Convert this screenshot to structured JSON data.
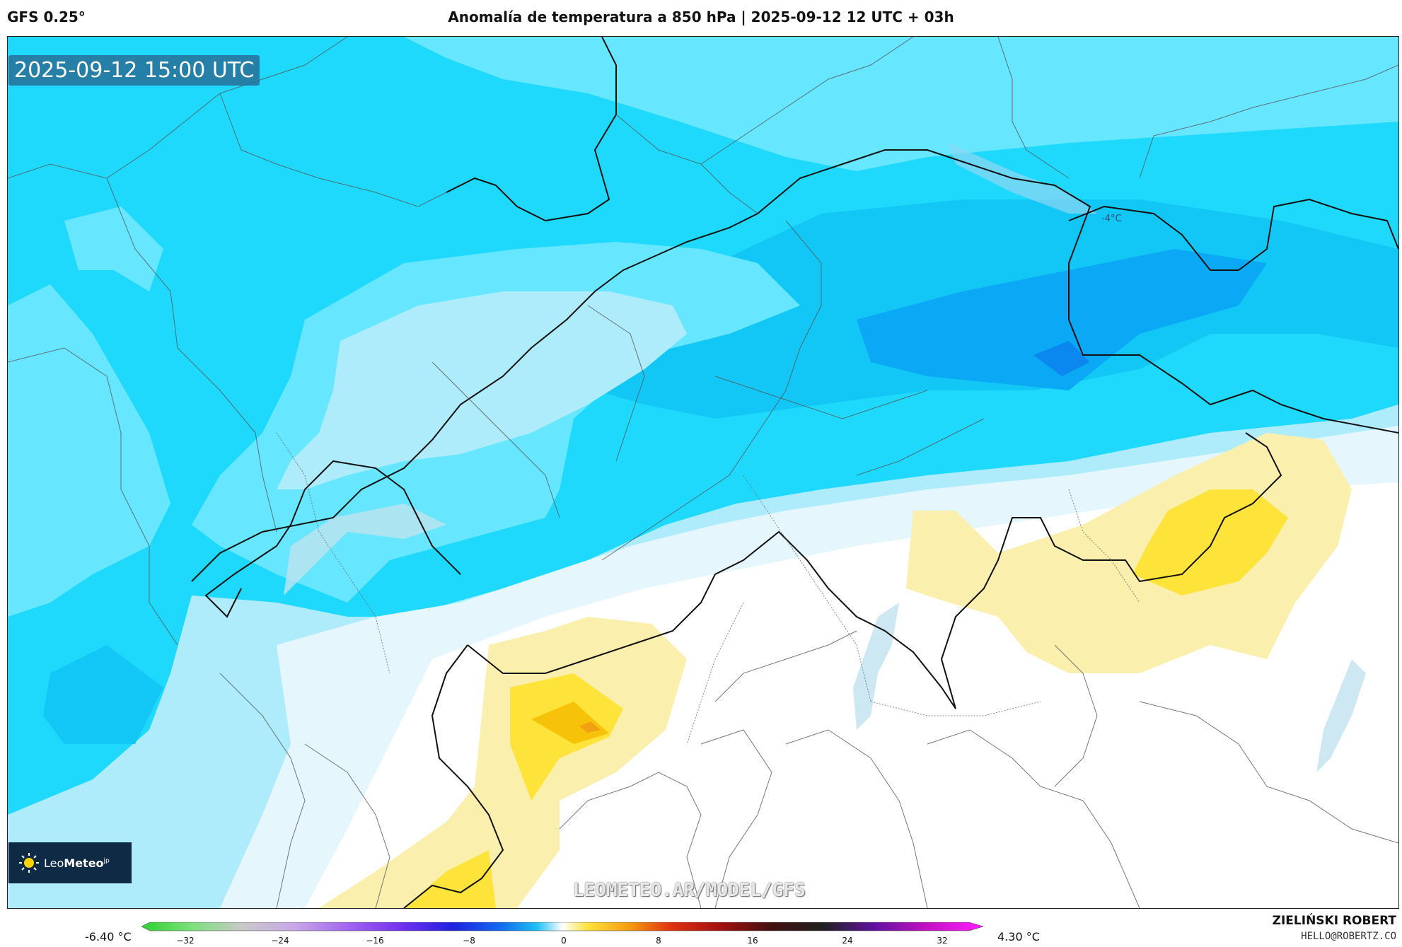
{
  "header": {
    "model": "GFS 0.25°",
    "title": "Anomalía de temperatura a 850 hPa | 2025-09-12 12 UTC + 03h"
  },
  "map": {
    "valid_time": "2025-09-12 15:00 UTC",
    "contour_label": "-4°C",
    "watermark": "LEOMETEO.AR/MODEL/GFS"
  },
  "logo": {
    "prefix": "Leo",
    "name": "Meteo",
    "suffix": "jp"
  },
  "colorbar": {
    "min_value": "-6.40 °C",
    "max_value": "4.30 °C",
    "ticks": [
      "−32",
      "−24",
      "−16",
      "−8",
      "0",
      "8",
      "16",
      "24",
      "32"
    ]
  },
  "footer": {
    "author": "ZIELIŃSKI ROBERT",
    "email": "HELLO@ROBERTZ.CO"
  },
  "colors": {
    "anom_minus6": "#0a88f0",
    "anom_minus5": "#0aa8f5",
    "anom_minus4": "#12c7f5",
    "anom_minus3": "#1ed9fb",
    "anom_minus2": "#66e6ff",
    "anom_minus1": "#aeecfc",
    "anom_minus05": "#e6f6fd",
    "anom_plus1": "#fbefae",
    "anom_plus2": "#fde33a",
    "anom_plus3": "#f7c20a"
  }
}
